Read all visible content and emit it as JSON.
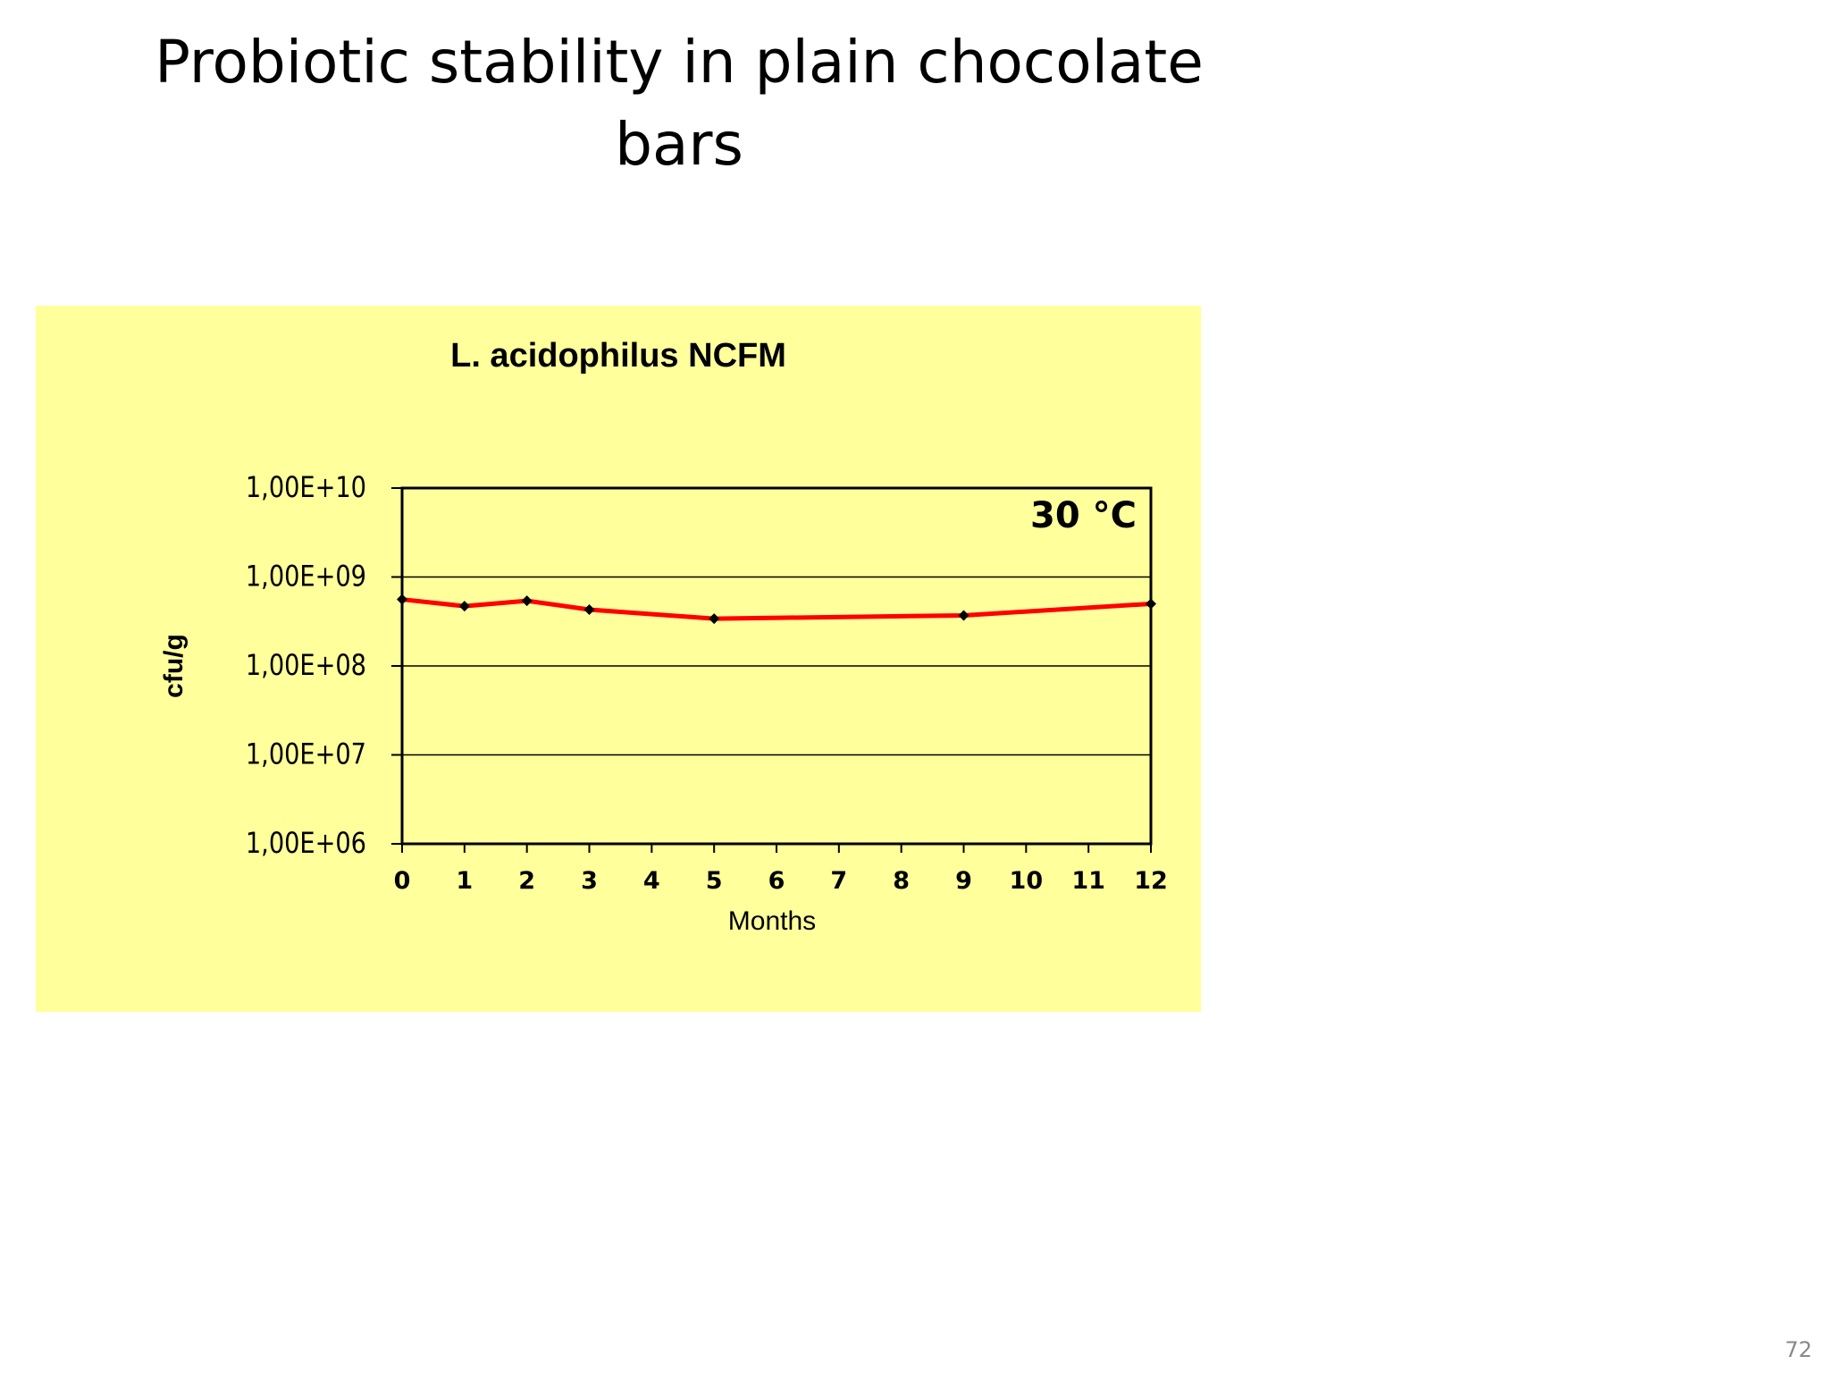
{
  "slide": {
    "title": "Probiotic stability in plain chocolate\nbars",
    "page_number": "72"
  },
  "chart_data": {
    "type": "line",
    "title": "L. acidophilus NCFM",
    "annotation": "30 °C",
    "xlabel": "Months",
    "ylabel": "cfu/g",
    "y_scale": "log",
    "ylim": [
      1000000,
      10000000000
    ],
    "yticks": [
      1000000,
      10000000,
      100000000,
      1000000000,
      10000000000
    ],
    "ytick_labels": [
      "1,00E+06",
      "1,00E+07",
      "1,00E+08",
      "1,00E+09",
      "1,00E+10"
    ],
    "xlim": [
      0,
      12
    ],
    "xticks": [
      0,
      1,
      2,
      3,
      4,
      5,
      6,
      7,
      8,
      9,
      10,
      11,
      12
    ],
    "xtick_labels": [
      "0",
      "1",
      "2",
      "3",
      "4",
      "5",
      "6",
      "7",
      "8",
      "9",
      "10",
      "11",
      "12"
    ],
    "grid": "horizontal",
    "series": [
      {
        "x": [
          0,
          1,
          2,
          3,
          5,
          9,
          12
        ],
        "y": [
          560000000,
          470000000,
          540000000,
          430000000,
          340000000,
          370000000,
          500000000
        ],
        "color": "#ff0000",
        "marker_color": "#000000"
      }
    ],
    "background": "#ffff9c"
  }
}
